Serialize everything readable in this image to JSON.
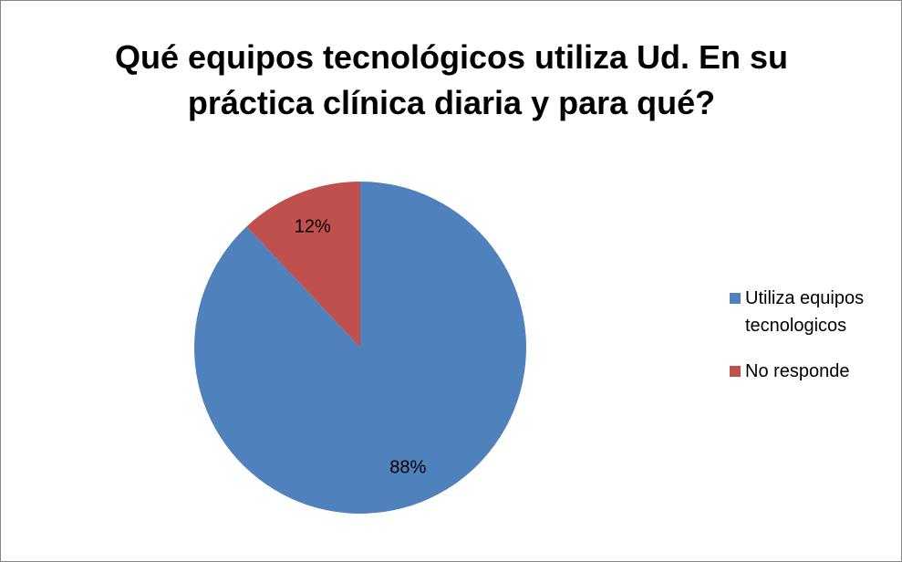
{
  "chart_data": {
    "type": "pie",
    "title": "Qué equipos tecnológicos utiliza Ud. En su práctica clínica diaria y para qué?",
    "categories": [
      "Utiliza equipos tecnologicos",
      "No responde"
    ],
    "values": [
      88,
      12
    ],
    "value_labels": [
      "88%",
      "12%"
    ],
    "colors": [
      "#4f81bd",
      "#c0504d"
    ],
    "legend": "right"
  }
}
